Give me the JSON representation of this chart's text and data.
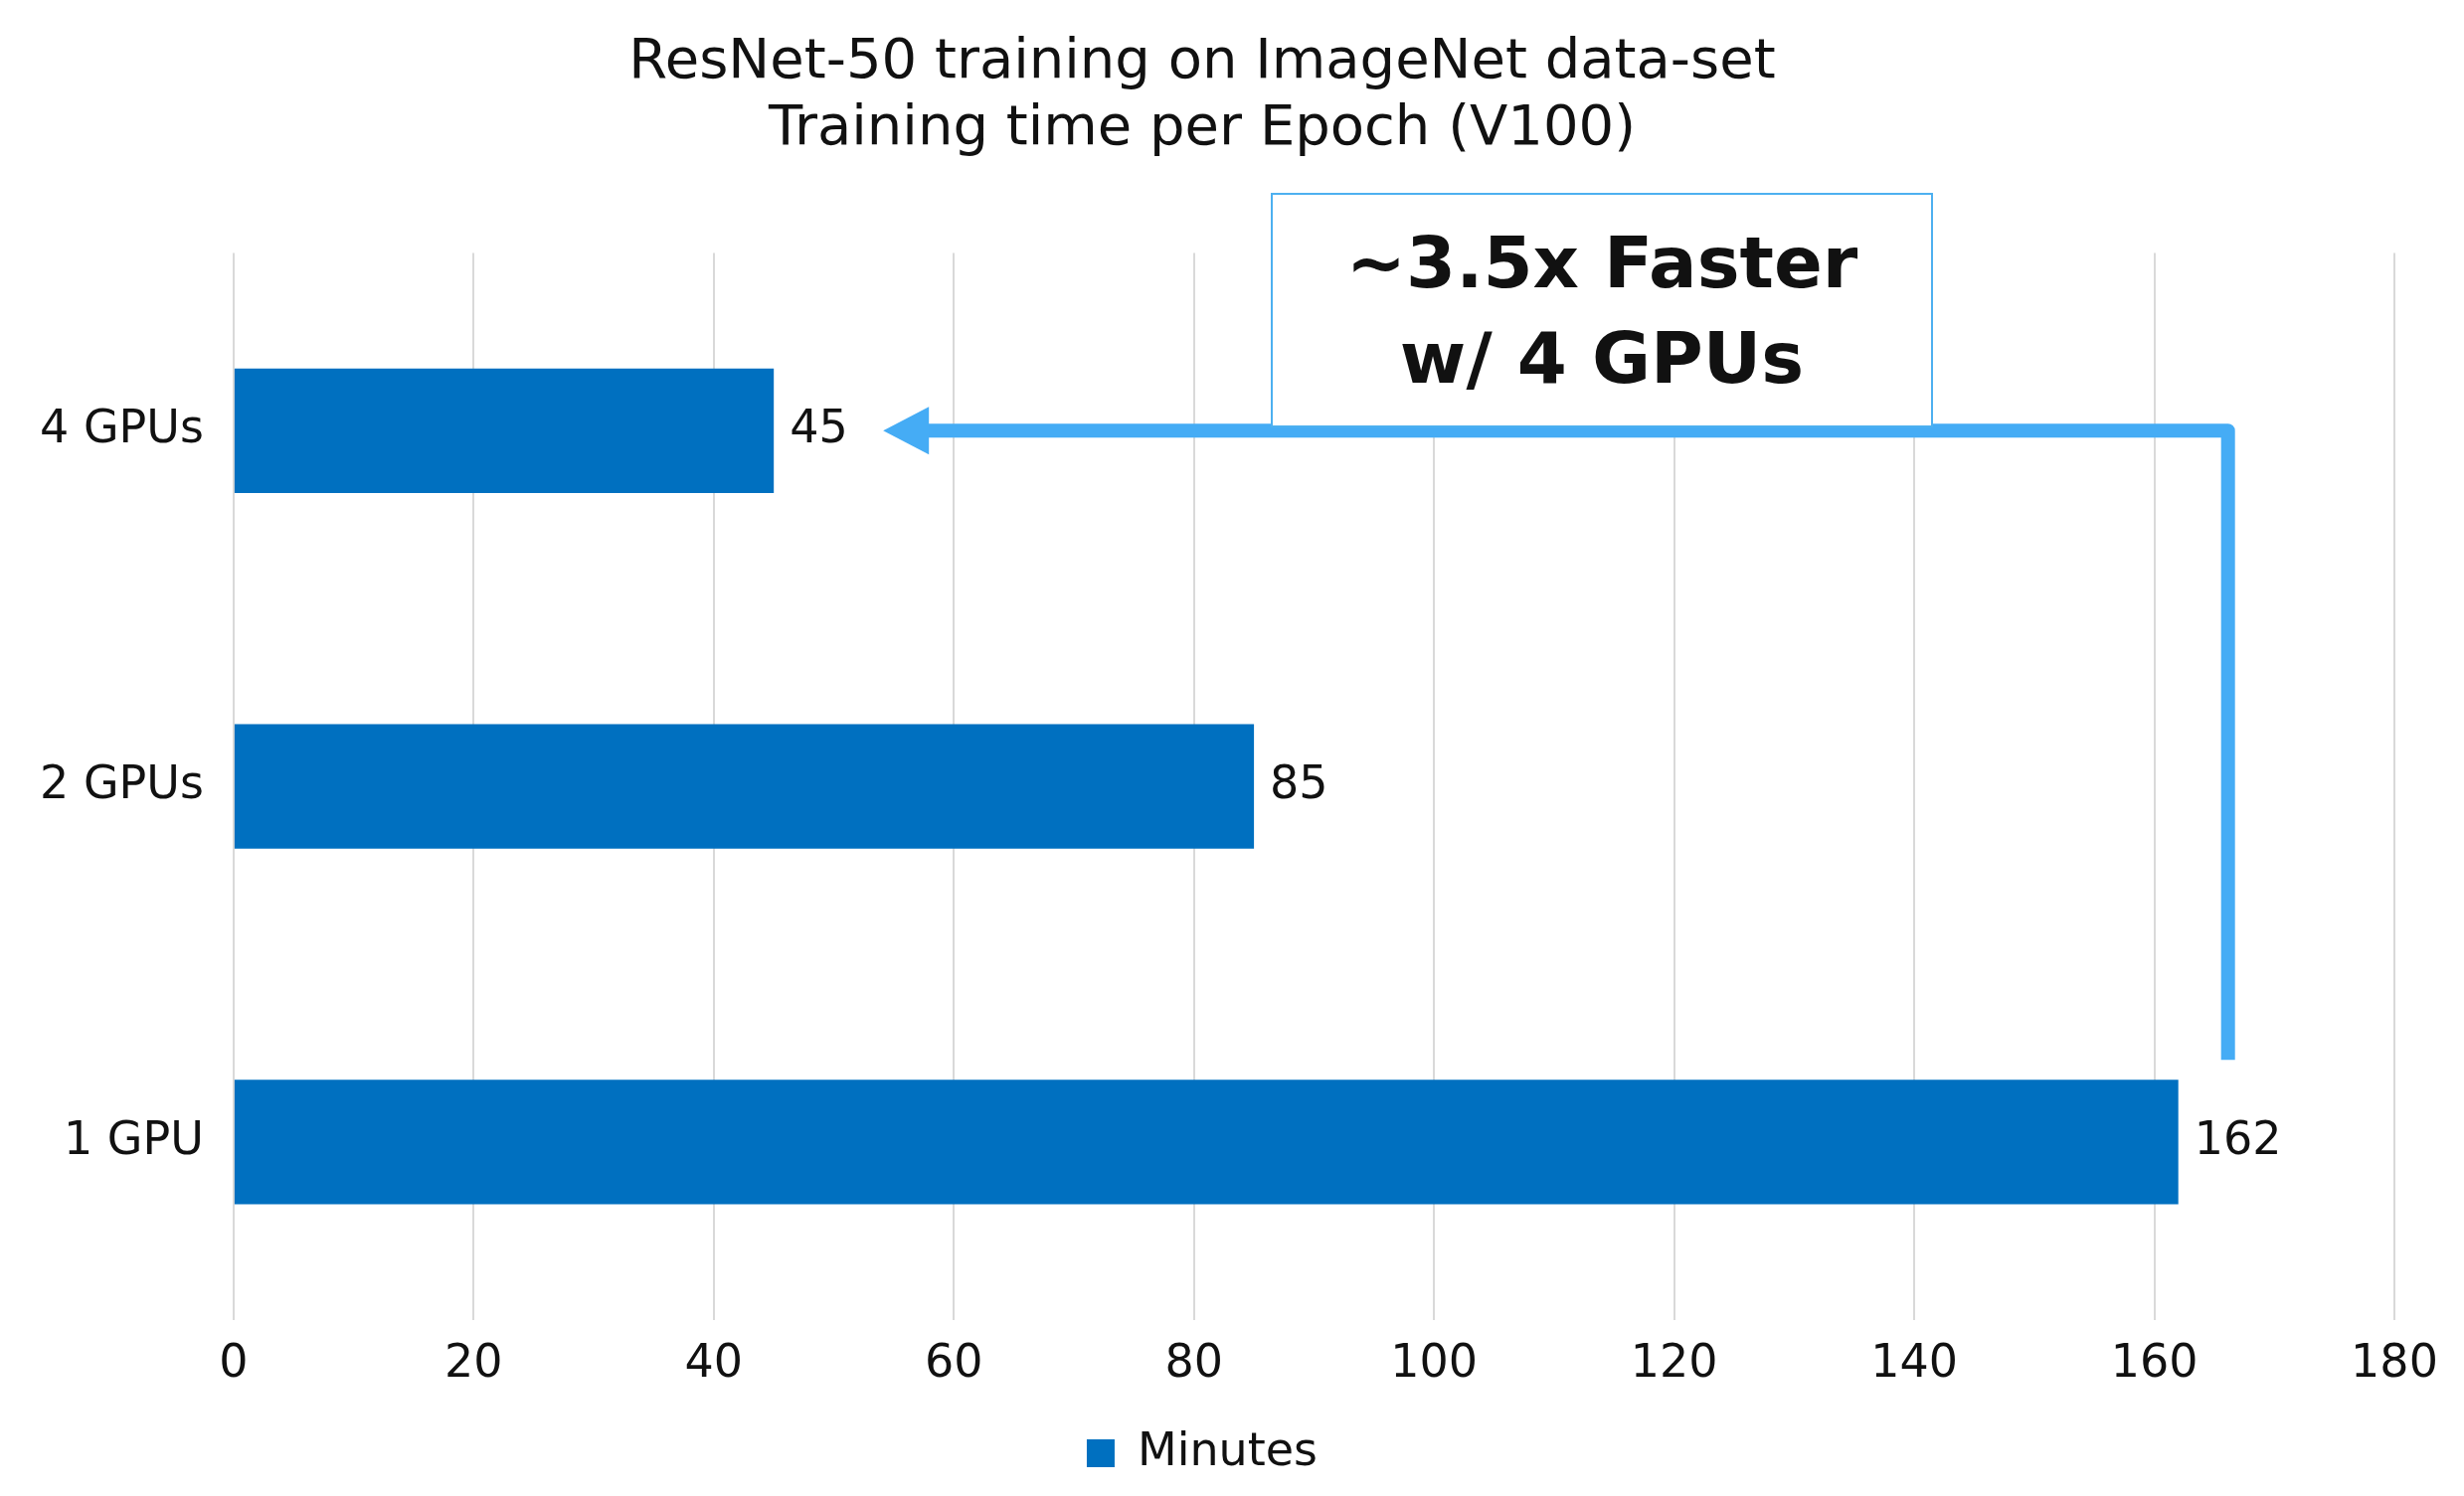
{
  "chart_data": {
    "type": "bar",
    "orientation": "horizontal",
    "title": [
      "ResNet-50 training on ImageNet data-set",
      "Training time per Epoch (V100)"
    ],
    "categories": [
      "4 GPUs",
      "2 GPUs",
      "1 GPU"
    ],
    "series": [
      {
        "name": "Minutes",
        "color": "#0070c0",
        "values": [
          45,
          85,
          162
        ]
      }
    ],
    "xlim": [
      0,
      180
    ],
    "xticks": [
      0,
      20,
      40,
      60,
      80,
      100,
      120,
      140,
      160,
      180
    ],
    "grid": "x",
    "legend": "bottom",
    "data_labels": true,
    "annotations": [
      "~3.5x Faster w/ 4 GPUs"
    ]
  }
}
